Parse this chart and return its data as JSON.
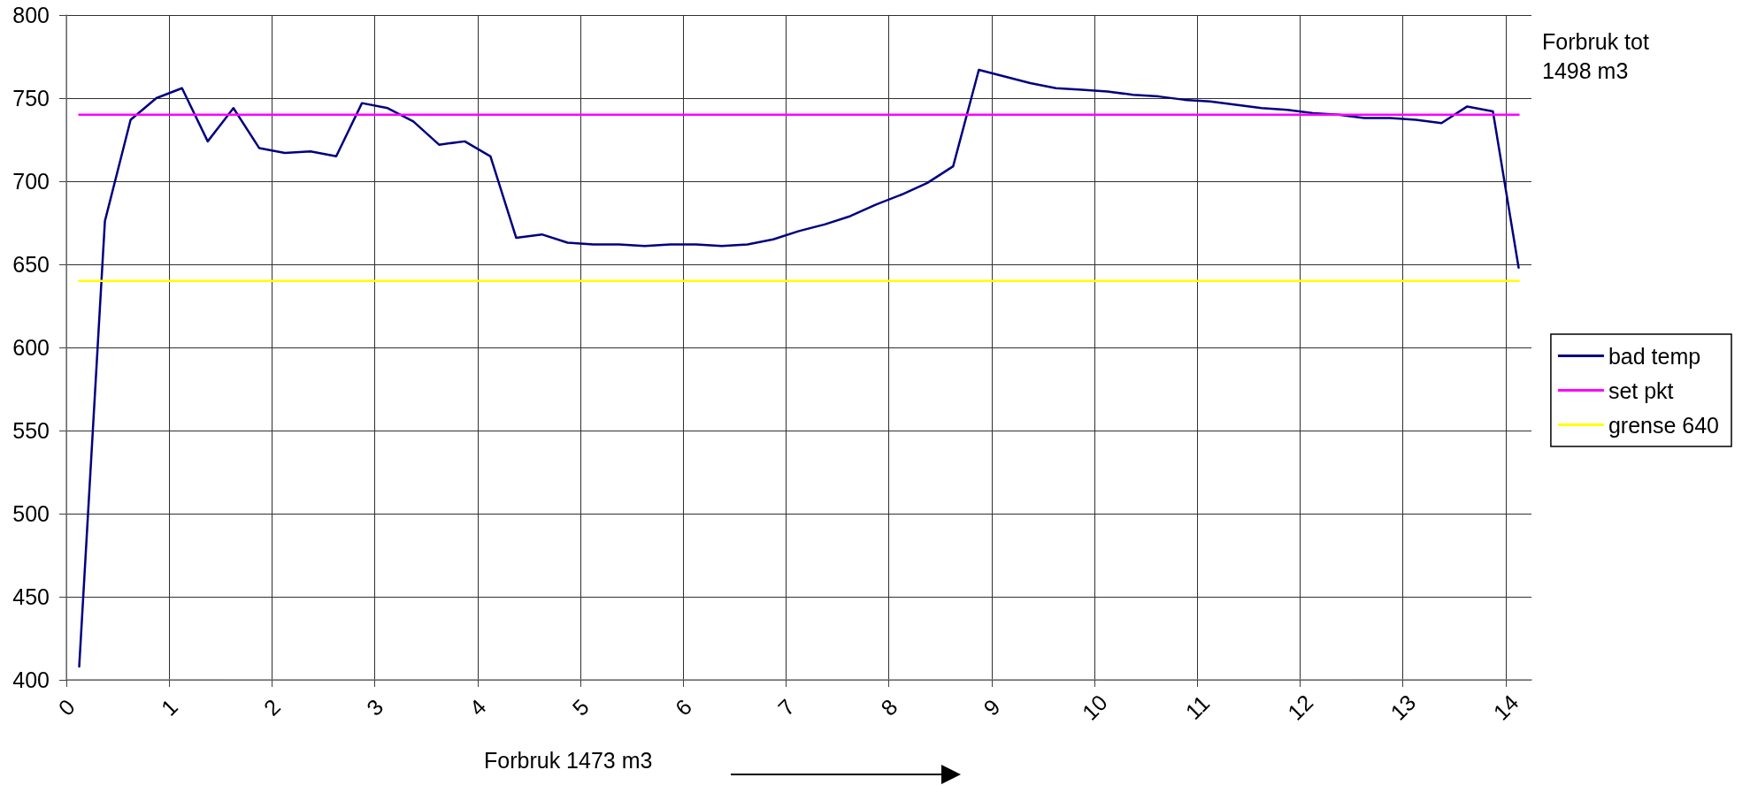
{
  "chart_data": {
    "type": "line",
    "xlabel": "Forbruk 1473 m3",
    "annotations": [
      "Forbruk tot 1498 m3"
    ],
    "x": [
      0.125,
      0.375,
      0.625,
      0.875,
      1.125,
      1.375,
      1.625,
      1.875,
      2.125,
      2.375,
      2.625,
      2.875,
      3.125,
      3.375,
      3.625,
      3.875,
      4.125,
      4.375,
      4.625,
      4.875,
      5.125,
      5.375,
      5.625,
      5.875,
      6.125,
      6.375,
      6.625,
      6.875,
      7.125,
      7.375,
      7.625,
      7.875,
      8.125,
      8.375,
      8.625,
      8.875,
      9.125,
      9.375,
      9.625,
      9.875,
      10.125,
      10.375,
      10.625,
      10.875,
      11.125,
      11.375,
      11.625,
      11.875,
      12.125,
      12.375,
      12.625,
      12.875,
      13.125,
      13.375,
      13.625,
      13.875,
      14.125
    ],
    "series": [
      {
        "name": "bad temp",
        "color": "#000080",
        "values": [
          408,
          676,
          737,
          750,
          756,
          724,
          744,
          720,
          717,
          718,
          715,
          747,
          744,
          736,
          722,
          724,
          715,
          666,
          668,
          663,
          662,
          662,
          661,
          662,
          662,
          661,
          662,
          665,
          670,
          674,
          679,
          686,
          692,
          699,
          709,
          767,
          763,
          759,
          756,
          755,
          754,
          752,
          751,
          749,
          748,
          746,
          744,
          743,
          741,
          740,
          738,
          738,
          737,
          735,
          745,
          742,
          648
        ]
      },
      {
        "name": "set pkt",
        "color": "#ff00ff",
        "values": [
          740,
          740,
          740,
          740,
          740,
          740,
          740,
          740,
          740,
          740,
          740,
          740,
          740,
          740,
          740,
          740,
          740,
          740,
          740,
          740,
          740,
          740,
          740,
          740,
          740,
          740,
          740,
          740,
          740,
          740,
          740,
          740,
          740,
          740,
          740,
          740,
          740,
          740,
          740,
          740,
          740,
          740,
          740,
          740,
          740,
          740,
          740,
          740,
          740,
          740,
          740,
          740,
          740,
          740,
          740,
          740,
          740
        ]
      },
      {
        "name": "grense 640",
        "color": "#ffff00",
        "values": [
          640,
          640,
          640,
          640,
          640,
          640,
          640,
          640,
          640,
          640,
          640,
          640,
          640,
          640,
          640,
          640,
          640,
          640,
          640,
          640,
          640,
          640,
          640,
          640,
          640,
          640,
          640,
          640,
          640,
          640,
          640,
          640,
          640,
          640,
          640,
          640,
          640,
          640,
          640,
          640,
          640,
          640,
          640,
          640,
          640,
          640,
          640,
          640,
          640,
          640,
          640,
          640,
          640,
          640,
          640,
          640,
          640
        ]
      }
    ],
    "xlim": [
      0,
      14.25
    ],
    "xticks": [
      0,
      1,
      2,
      3,
      4,
      5,
      6,
      7,
      8,
      9,
      10,
      11,
      12,
      13,
      14
    ],
    "ylim": [
      400,
      800
    ],
    "yticks": [
      400,
      450,
      500,
      550,
      600,
      650,
      700,
      750,
      800
    ],
    "grid": true,
    "legend": "right",
    "marker": "none",
    "line_style": "solid"
  }
}
